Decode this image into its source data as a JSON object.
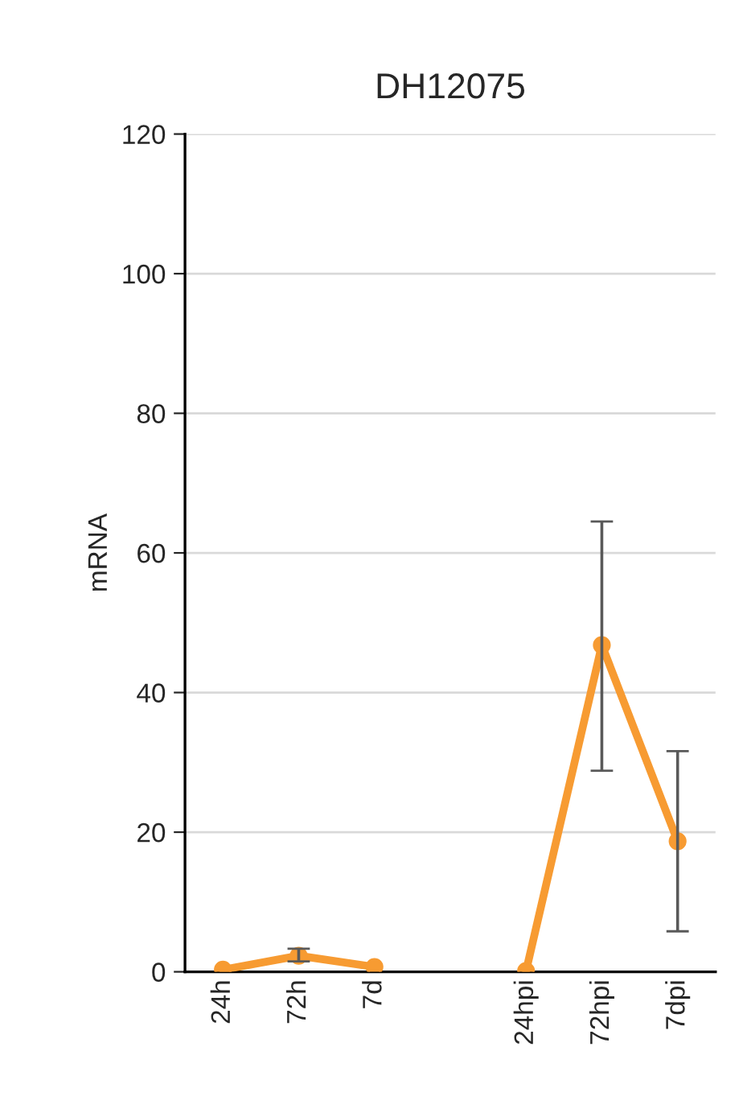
{
  "chart_data": {
    "type": "line",
    "title": "DH12075",
    "ylabel": "mRNA",
    "categories": [
      "24h",
      "72h",
      "7d",
      null,
      "24hpi",
      "72hpi",
      "7dpi"
    ],
    "series": [
      {
        "color": "#f79b32",
        "values": [
          0.3,
          2.3,
          0.7,
          null,
          0.1,
          46.8,
          18.7
        ],
        "errors": [
          null,
          [
            1.5,
            3.3
          ],
          null,
          null,
          null,
          [
            28.8,
            64.5
          ],
          [
            5.8,
            31.6
          ]
        ]
      }
    ],
    "ylim": [
      0,
      120
    ],
    "yticks": [
      0,
      20,
      40,
      60,
      80,
      100,
      120
    ],
    "grid": "y",
    "legend": false,
    "marker": "circle",
    "line_style": "solid"
  }
}
